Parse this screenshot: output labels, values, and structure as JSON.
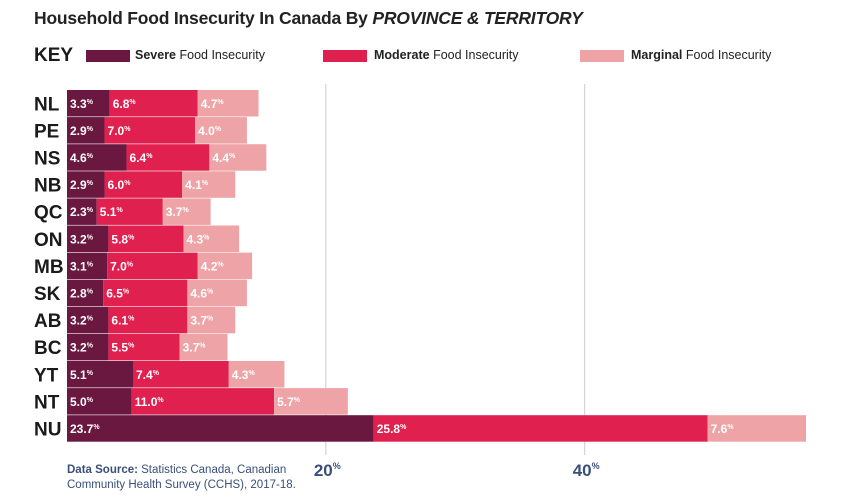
{
  "title": {
    "plain": "Household Food Insecurity In Canada By",
    "emph": "PROVINCE & TERRITORY"
  },
  "key": {
    "label": "KEY",
    "items": [
      {
        "bold": "Severe",
        "rest": "Food Insecurity",
        "color": "#6a1840"
      },
      {
        "bold": "Moderate",
        "rest": "Food Insecurity",
        "color": "#e0204f"
      },
      {
        "bold": "Marginal",
        "rest": "Food Insecurity",
        "color": "#eea3a6"
      }
    ]
  },
  "source": {
    "bold": "Data Source:",
    "text": "Statistics Canada, Canadian Community Health Survey (CCHS), 2017-18."
  },
  "chart_data": {
    "type": "bar",
    "orientation": "horizontal",
    "stacked": true,
    "categories": [
      "NL",
      "PE",
      "NS",
      "NB",
      "QC",
      "ON",
      "MB",
      "SK",
      "AB",
      "BC",
      "YT",
      "NT",
      "NU"
    ],
    "series": [
      {
        "name": "Severe Food Insecurity",
        "color": "#6a1840",
        "values": [
          3.3,
          2.9,
          4.6,
          2.9,
          2.3,
          3.2,
          3.1,
          2.8,
          3.2,
          3.2,
          5.1,
          5.0,
          23.7
        ]
      },
      {
        "name": "Moderate Food Insecurity",
        "color": "#e0204f",
        "values": [
          6.8,
          7.0,
          6.4,
          6.0,
          5.1,
          5.8,
          7.0,
          6.5,
          6.1,
          5.5,
          7.4,
          11.0,
          25.8
        ]
      },
      {
        "name": "Marginal Food Insecurity",
        "color": "#eea3a6",
        "values": [
          4.7,
          4.0,
          4.4,
          4.1,
          3.7,
          4.3,
          4.2,
          4.6,
          3.7,
          3.7,
          4.3,
          5.7,
          7.6
        ]
      }
    ],
    "unit": "%",
    "xlim": [
      0,
      57.1
    ],
    "xticks": [
      20,
      40
    ],
    "gridlines": true
  }
}
